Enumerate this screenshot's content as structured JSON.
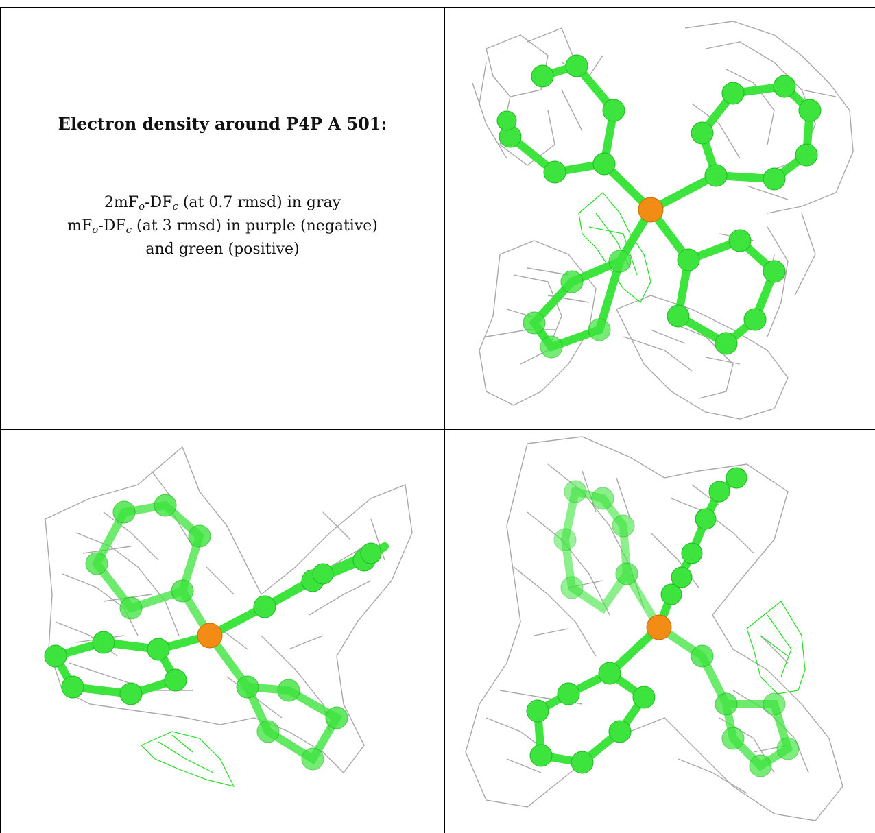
{
  "caption": {
    "title": "Electron density around P4P A 501:",
    "line1": {
      "pre": "2mF",
      "sub1": "o",
      "mid": "-DF",
      "sub2": "c",
      "post": " (at 0.7 rmsd) in gray"
    },
    "line2": {
      "pre": "mF",
      "sub1": "o",
      "mid": "-DF",
      "sub2": "c",
      "post": " (at 3 rmsd) in purple (negative)"
    },
    "line3": "and green (positive)"
  },
  "colors": {
    "carbon": "#3de43d",
    "phosphorus": "#f28c14",
    "mesh_2fofc": "#a8a8a8",
    "mesh_fofc_positive": "#22dd22",
    "mesh_fofc_negative": "#9b30ff",
    "border": "#000000"
  },
  "views": [
    {
      "name": "view-top-right"
    },
    {
      "name": "view-bottom-left"
    },
    {
      "name": "view-bottom-right"
    }
  ]
}
